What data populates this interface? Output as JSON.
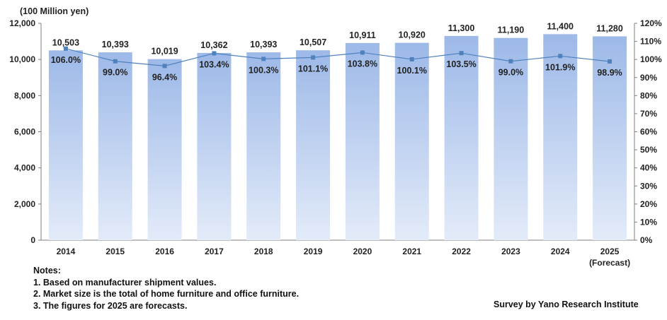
{
  "chart_data": {
    "type": "bar",
    "left_axis_unit": "(100 Million yen)",
    "categories": [
      "2014",
      "2015",
      "2016",
      "2017",
      "2018",
      "2019",
      "2020",
      "2021",
      "2022",
      "2023",
      "2024",
      "2025"
    ],
    "category_sublabels": [
      "",
      "",
      "",
      "",
      "",
      "",
      "",
      "",
      "",
      "",
      "",
      "(Forecast)"
    ],
    "series": [
      {
        "type": "bar",
        "axis": "left",
        "values": [
          10503,
          10393,
          10019,
          10362,
          10393,
          10507,
          10911,
          10920,
          11300,
          11190,
          11400,
          11280
        ],
        "labels": [
          "10,503",
          "10,393",
          "10,019",
          "10,362",
          "10,393",
          "10,507",
          "10,911",
          "10,920",
          "11,300",
          "11,190",
          "11,400",
          "11,280"
        ]
      },
      {
        "type": "line",
        "axis": "right",
        "values": [
          106.0,
          99.0,
          96.4,
          103.4,
          100.3,
          101.1,
          103.8,
          100.1,
          103.5,
          99.0,
          101.9,
          98.9
        ],
        "labels": [
          "106.0%",
          "99.0%",
          "96.4%",
          "103.4%",
          "100.3%",
          "101.1%",
          "103.8%",
          "100.1%",
          "103.5%",
          "99.0%",
          "101.9%",
          "98.9%"
        ]
      }
    ],
    "ylim_left": [
      0,
      12000
    ],
    "yticks_left": [
      "0",
      "2,000",
      "4,000",
      "6,000",
      "8,000",
      "10,000",
      "12,000"
    ],
    "ylim_right": [
      0,
      120
    ],
    "yticks_right": [
      "0%",
      "10%",
      "20%",
      "30%",
      "40%",
      "50%",
      "60%",
      "70%",
      "80%",
      "90%",
      "100%",
      "110%",
      "120%"
    ],
    "grid": false,
    "colors": {
      "bar_top": "#9db9e8",
      "bar_bottom": "#e3ebf9",
      "line": "#4f81bd",
      "axis": "#7f7f7f"
    }
  },
  "notes": {
    "heading": "Notes:",
    "items": [
      "1. Based on manufacturer shipment values.",
      "2. Market size is the total of home furniture and office furniture.",
      "3. The figures for 2025 are forecasts."
    ]
  },
  "credit": "Survey by Yano Research Institute"
}
